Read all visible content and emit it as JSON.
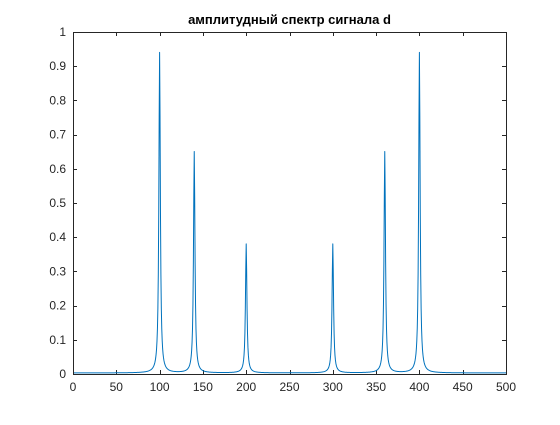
{
  "chart_data": {
    "type": "line",
    "title": "амплитудный спектр сигнала d",
    "xlabel": "",
    "ylabel": "",
    "xlim": [
      0,
      500
    ],
    "ylim": [
      0,
      1
    ],
    "x_ticks": [
      0,
      50,
      100,
      150,
      200,
      250,
      300,
      350,
      400,
      450,
      500
    ],
    "x_tick_labels": [
      "0",
      "50",
      "100",
      "150",
      "200",
      "250",
      "300",
      "350",
      "400",
      "450",
      "500"
    ],
    "y_ticks": [
      0,
      0.1,
      0.2,
      0.3,
      0.4,
      0.5,
      0.6,
      0.7,
      0.8,
      0.9,
      1
    ],
    "y_tick_labels": [
      "0",
      "0.1",
      "0.2",
      "0.3",
      "0.4",
      "0.5",
      "0.6",
      "0.7",
      "0.8",
      "0.9",
      "1"
    ],
    "grid": false,
    "legend": "none",
    "colors": {
      "line": "#0072BD",
      "axes": "#262626",
      "background": "#FFFFFF"
    },
    "series": [
      {
        "color": "#0072BD",
        "peaks": [
          {
            "x": 100,
            "y": 0.94
          },
          {
            "x": 140,
            "y": 0.65
          },
          {
            "x": 200,
            "y": 0.38
          },
          {
            "x": 300,
            "y": 0.38
          },
          {
            "x": 360,
            "y": 0.65
          },
          {
            "x": 400,
            "y": 0.94
          }
        ],
        "baseline": 0.003,
        "peak_halfwidth": 1.0
      }
    ]
  }
}
